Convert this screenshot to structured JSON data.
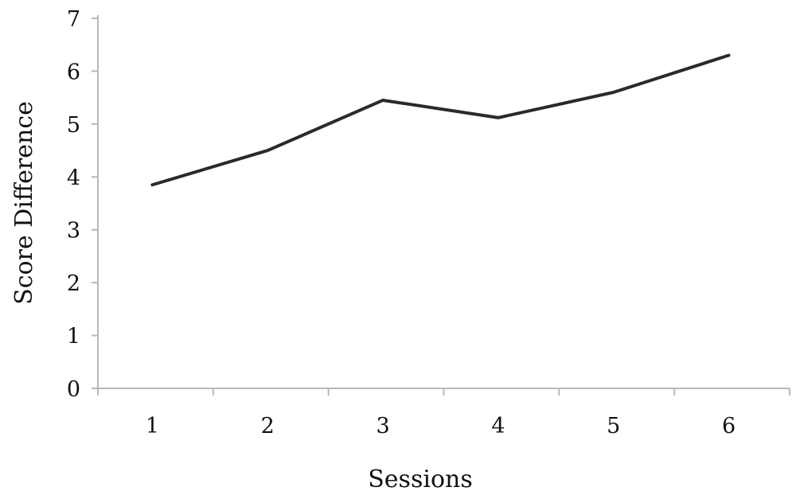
{
  "chart_data": {
    "type": "line",
    "title": "",
    "xlabel": "Sessions",
    "ylabel": "Score Difference",
    "x": [
      "1",
      "2",
      "3",
      "4",
      "5",
      "6"
    ],
    "y_ticks": [
      "0",
      "1",
      "2",
      "3",
      "4",
      "5",
      "6",
      "7"
    ],
    "ylim": [
      0,
      7
    ],
    "grid": false,
    "legend": "none",
    "series": [
      {
        "values": [
          3.85,
          4.5,
          5.45,
          5.12,
          5.6,
          6.3
        ],
        "color": "#2a2a2a"
      }
    ]
  }
}
